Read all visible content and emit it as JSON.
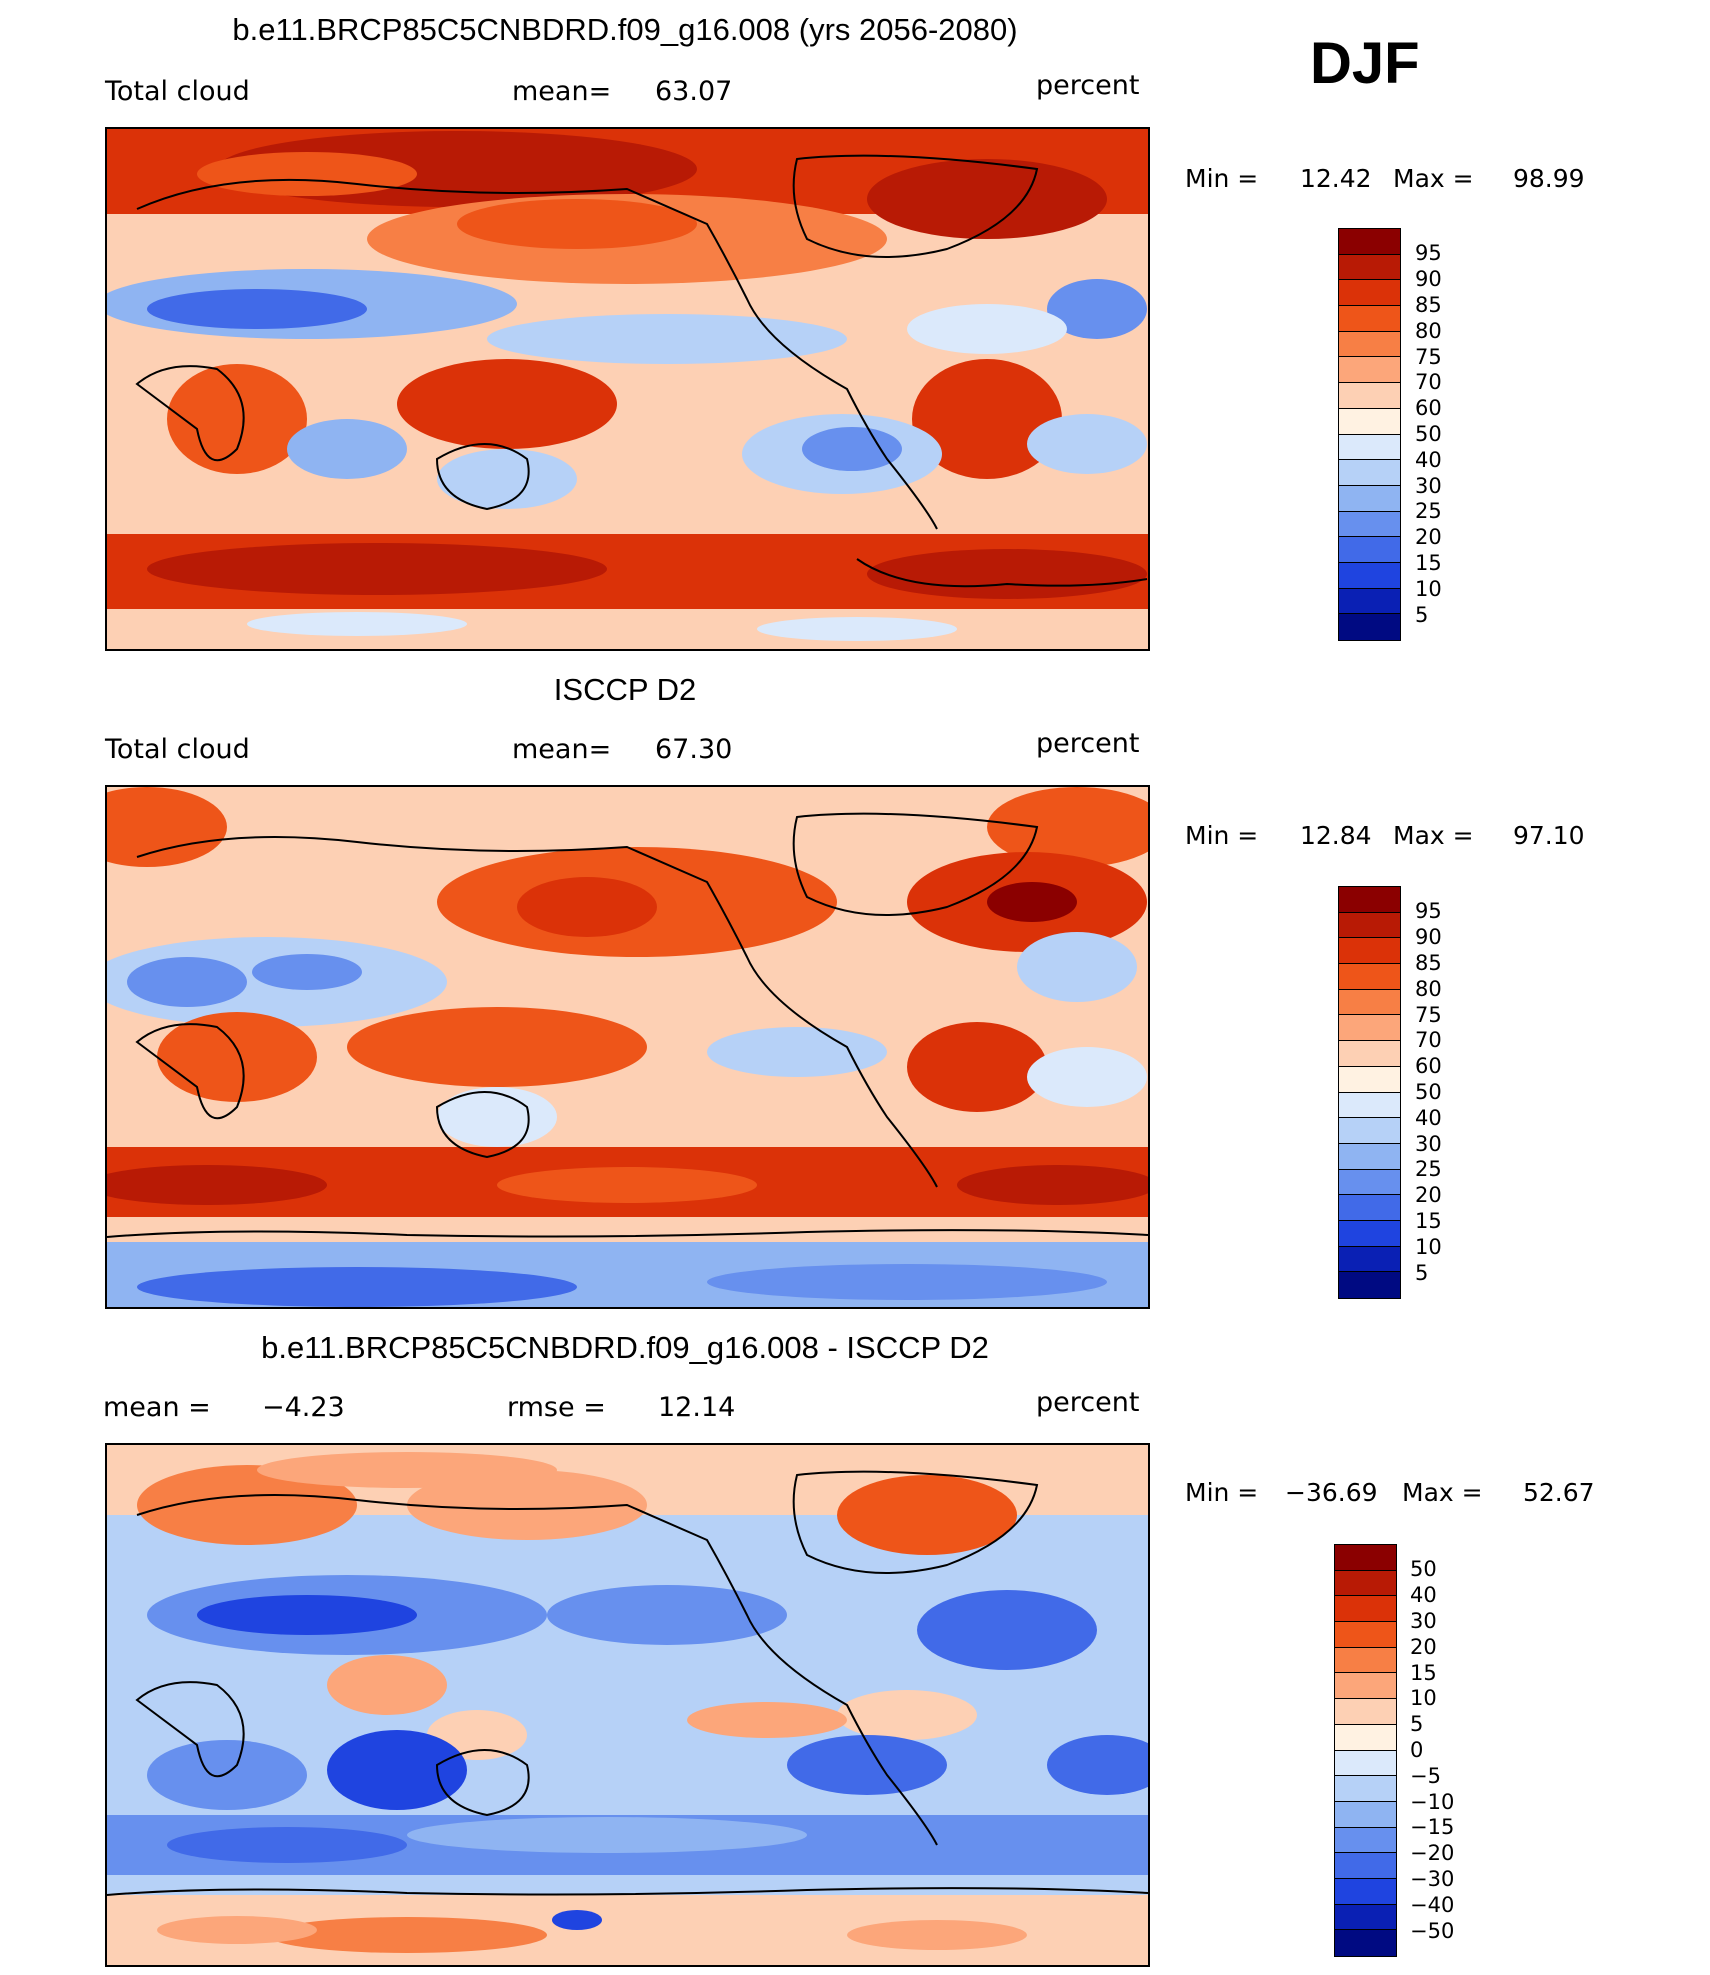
{
  "season": "DJF",
  "panels": [
    {
      "title": "b.e11.BRCP85C5CNBDRD.f09_g16.008 (yrs 2056-2080)",
      "left": "Total cloud",
      "center_label": "mean=",
      "center_value": "63.07",
      "units": "percent",
      "min_label": "Min =",
      "min_value": "12.42",
      "max_label": "Max =",
      "max_value": "98.99",
      "colorbar_ticks": [
        "95",
        "90",
        "85",
        "80",
        "75",
        "70",
        "60",
        "50",
        "40",
        "30",
        "25",
        "20",
        "15",
        "10",
        "5"
      ]
    },
    {
      "title": "ISCCP D2",
      "left": "Total cloud",
      "center_label": "mean=",
      "center_value": "67.30",
      "units": "percent",
      "min_label": "Min =",
      "min_value": "12.84",
      "max_label": "Max =",
      "max_value": "97.10",
      "colorbar_ticks": [
        "95",
        "90",
        "85",
        "80",
        "75",
        "70",
        "60",
        "50",
        "40",
        "30",
        "25",
        "20",
        "15",
        "10",
        "5"
      ]
    },
    {
      "title": "b.e11.BRCP85C5CNBDRD.f09_g16.008 - ISCCP D2",
      "left": "mean =",
      "left_value": "−4.23",
      "center_label": "rmse =",
      "center_value": "12.14",
      "units": "percent",
      "min_label": "Min =",
      "min_value": "−36.69",
      "max_label": "Max =",
      "max_value": "52.67",
      "colorbar_ticks": [
        "50",
        "40",
        "30",
        "20",
        "15",
        "10",
        "5",
        "0",
        "−5",
        "−10",
        "−15",
        "−20",
        "−30",
        "−40",
        "−50"
      ]
    }
  ],
  "colors": {
    "levels_16": [
      "#8b0000",
      "#b81a05",
      "#db3208",
      "#ee5519",
      "#f77f45",
      "#fca67a",
      "#fdd0b4",
      "#fff2e2",
      "#dbe9fb",
      "#b6d1f7",
      "#8fb4f2",
      "#6790ee",
      "#416ae8",
      "#1f44e0",
      "#0a20b4",
      "#000a82"
    ]
  }
}
